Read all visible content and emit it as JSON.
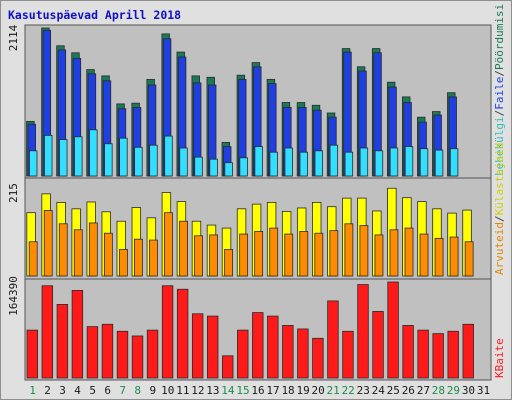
{
  "chart_data": [
    {
      "type": "bar",
      "title": "Kasutuspäevad Aprill 2018",
      "categories": [
        "1",
        "2",
        "3",
        "4",
        "5",
        "6",
        "7",
        "8",
        "9",
        "10",
        "11",
        "12",
        "13",
        "14",
        "15",
        "16",
        "17",
        "18",
        "19",
        "20",
        "21",
        "22",
        "23",
        "24",
        "25",
        "26",
        "27",
        "28",
        "29",
        "30",
        "31"
      ],
      "weekend_days": [
        "1",
        "7",
        "8",
        "14",
        "15",
        "21",
        "22",
        "28",
        "29"
      ],
      "ytick": "2114",
      "ylim": [
        0,
        2114
      ],
      "series": [
        {
          "name": "Pöördumisi",
          "color": "#1a7a55",
          "values": [
            780,
            2114,
            1860,
            1760,
            1520,
            1430,
            1030,
            1040,
            1380,
            2030,
            1770,
            1430,
            1410,
            480,
            1440,
            1620,
            1380,
            1050,
            1050,
            1010,
            900,
            1820,
            1560,
            1820,
            1340,
            1130,
            840,
            920,
            1190,
            null,
            null
          ]
        },
        {
          "name": "Faile",
          "color": "#1f3fe0",
          "values": [
            740,
            2080,
            1800,
            1680,
            1460,
            1360,
            960,
            980,
            1300,
            1960,
            1700,
            1330,
            1300,
            420,
            1380,
            1560,
            1320,
            980,
            980,
            940,
            840,
            1770,
            1500,
            1760,
            1270,
            1050,
            770,
            870,
            1130,
            null,
            null
          ]
        },
        {
          "name": "Lehekülgi",
          "color": "#33dfff",
          "values": [
            360,
            580,
            520,
            560,
            660,
            460,
            540,
            410,
            440,
            570,
            400,
            270,
            240,
            190,
            260,
            420,
            340,
            400,
            340,
            360,
            440,
            340,
            400,
            360,
            400,
            420,
            390,
            370,
            390,
            null,
            null
          ]
        }
      ]
    },
    {
      "type": "bar",
      "ytick": "215",
      "ylim": [
        0,
        215
      ],
      "series": [
        {
          "name": "Külastajaid",
          "color": "#ffff00",
          "values": [
            148,
            192,
            172,
            157,
            173,
            150,
            128,
            160,
            136,
            195,
            174,
            128,
            119,
            112,
            157,
            168,
            172,
            151,
            159,
            172,
            162,
            182,
            182,
            152,
            205,
            183,
            174,
            157,
            147,
            154,
            null
          ]
        },
        {
          "name": "Arvuteid",
          "color": "#ff8c00",
          "values": [
            80,
            153,
            122,
            108,
            124,
            100,
            62,
            86,
            84,
            148,
            128,
            94,
            96,
            62,
            98,
            104,
            112,
            98,
            104,
            100,
            106,
            122,
            118,
            96,
            108,
            112,
            98,
            88,
            91,
            80,
            null
          ]
        }
      ]
    },
    {
      "type": "bar",
      "ytick": "164390",
      "ylim": [
        0,
        164390
      ],
      "series": [
        {
          "name": "KBaite",
          "color": "#ff1a1a",
          "values": [
            82000,
            158000,
            126000,
            150000,
            88000,
            92000,
            80000,
            72000,
            82000,
            158000,
            152000,
            110000,
            106000,
            38000,
            82000,
            112000,
            106000,
            90000,
            84000,
            68000,
            132000,
            80000,
            160000,
            114000,
            164390,
            90000,
            82000,
            76000,
            80000,
            92000,
            null
          ]
        }
      ]
    }
  ]
}
